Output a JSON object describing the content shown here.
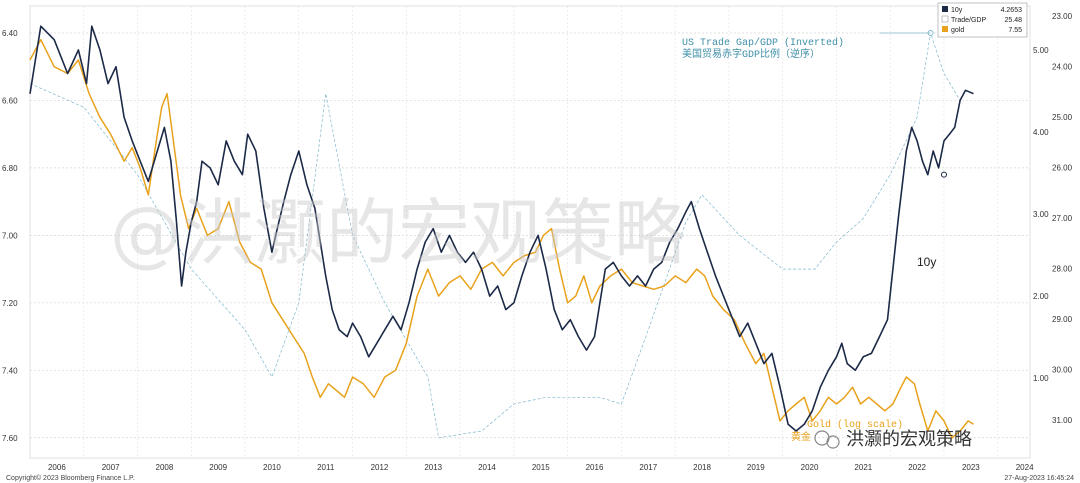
{
  "chart_data": {
    "type": "line",
    "x_ticks": [
      "2006",
      "2007",
      "2008",
      "2009",
      "2010",
      "2011",
      "2012",
      "2013",
      "2014",
      "2015",
      "2016",
      "2017",
      "2018",
      "2019",
      "2020",
      "2021",
      "2022",
      "2023",
      "2024"
    ],
    "left_axis": {
      "ticks": [
        "6.40",
        "6.60",
        "6.80",
        "7.00",
        "7.20",
        "7.40",
        "7.60"
      ],
      "range": [
        6.4,
        7.6
      ],
      "inverted": true
    },
    "right_axis_trade": {
      "ticks": [
        "5.00",
        "4.00",
        "3.00",
        "2.00",
        "1.00"
      ],
      "range": [
        5.0,
        1.0
      ]
    },
    "right_axis_gold": {
      "ticks": [
        "23.00",
        "24.00",
        "25.00",
        "26.00",
        "27.00",
        "28.00",
        "29.00",
        "30.00",
        "31.00"
      ],
      "range": [
        23.0,
        31.0
      ]
    },
    "grid": true,
    "series": [
      {
        "name": "10y",
        "color": "#1c2a48",
        "points": [
          [
            2006.0,
            6.58
          ],
          [
            2006.2,
            6.38
          ],
          [
            2006.45,
            6.42
          ],
          [
            2006.7,
            6.52
          ],
          [
            2006.9,
            6.45
          ],
          [
            2007.05,
            6.55
          ],
          [
            2007.15,
            6.38
          ],
          [
            2007.3,
            6.45
          ],
          [
            2007.45,
            6.55
          ],
          [
            2007.6,
            6.5
          ],
          [
            2007.75,
            6.65
          ],
          [
            2007.9,
            6.72
          ],
          [
            2008.05,
            6.78
          ],
          [
            2008.2,
            6.84
          ],
          [
            2008.35,
            6.76
          ],
          [
            2008.5,
            6.68
          ],
          [
            2008.62,
            6.78
          ],
          [
            2008.72,
            6.95
          ],
          [
            2008.82,
            7.15
          ],
          [
            2008.9,
            7.05
          ],
          [
            2009.0,
            6.96
          ],
          [
            2009.1,
            6.9
          ],
          [
            2009.2,
            6.78
          ],
          [
            2009.35,
            6.8
          ],
          [
            2009.5,
            6.85
          ],
          [
            2009.65,
            6.72
          ],
          [
            2009.8,
            6.78
          ],
          [
            2009.95,
            6.82
          ],
          [
            2010.05,
            6.7
          ],
          [
            2010.2,
            6.75
          ],
          [
            2010.35,
            6.92
          ],
          [
            2010.5,
            7.05
          ],
          [
            2010.6,
            6.98
          ],
          [
            2010.72,
            6.9
          ],
          [
            2010.85,
            6.82
          ],
          [
            2011.0,
            6.75
          ],
          [
            2011.15,
            6.85
          ],
          [
            2011.3,
            6.92
          ],
          [
            2011.4,
            7.02
          ],
          [
            2011.5,
            7.12
          ],
          [
            2011.62,
            7.22
          ],
          [
            2011.75,
            7.28
          ],
          [
            2011.9,
            7.3
          ],
          [
            2012.0,
            7.26
          ],
          [
            2012.15,
            7.3
          ],
          [
            2012.3,
            7.36
          ],
          [
            2012.45,
            7.32
          ],
          [
            2012.6,
            7.28
          ],
          [
            2012.75,
            7.24
          ],
          [
            2012.9,
            7.28
          ],
          [
            2013.05,
            7.2
          ],
          [
            2013.2,
            7.1
          ],
          [
            2013.35,
            7.02
          ],
          [
            2013.5,
            6.98
          ],
          [
            2013.65,
            7.05
          ],
          [
            2013.8,
            7.0
          ],
          [
            2013.95,
            7.05
          ],
          [
            2014.1,
            7.08
          ],
          [
            2014.25,
            7.05
          ],
          [
            2014.4,
            7.1
          ],
          [
            2014.55,
            7.18
          ],
          [
            2014.7,
            7.15
          ],
          [
            2014.85,
            7.22
          ],
          [
            2015.0,
            7.2
          ],
          [
            2015.15,
            7.12
          ],
          [
            2015.3,
            7.05
          ],
          [
            2015.45,
            7.0
          ],
          [
            2015.6,
            7.1
          ],
          [
            2015.75,
            7.22
          ],
          [
            2015.9,
            7.28
          ],
          [
            2016.05,
            7.25
          ],
          [
            2016.2,
            7.3
          ],
          [
            2016.35,
            7.34
          ],
          [
            2016.5,
            7.3
          ],
          [
            2016.6,
            7.2
          ],
          [
            2016.7,
            7.1
          ],
          [
            2016.85,
            7.08
          ],
          [
            2017.0,
            7.12
          ],
          [
            2017.15,
            7.15
          ],
          [
            2017.3,
            7.12
          ],
          [
            2017.45,
            7.15
          ],
          [
            2017.6,
            7.1
          ],
          [
            2017.75,
            7.08
          ],
          [
            2017.9,
            7.02
          ],
          [
            2018.05,
            6.98
          ],
          [
            2018.2,
            6.93
          ],
          [
            2018.3,
            6.9
          ],
          [
            2018.45,
            6.98
          ],
          [
            2018.6,
            7.05
          ],
          [
            2018.75,
            7.12
          ],
          [
            2018.9,
            7.18
          ],
          [
            2019.05,
            7.24
          ],
          [
            2019.2,
            7.3
          ],
          [
            2019.35,
            7.26
          ],
          [
            2019.5,
            7.32
          ],
          [
            2019.65,
            7.38
          ],
          [
            2019.8,
            7.35
          ],
          [
            2019.95,
            7.45
          ],
          [
            2020.1,
            7.56
          ],
          [
            2020.25,
            7.58
          ],
          [
            2020.4,
            7.56
          ],
          [
            2020.55,
            7.52
          ],
          [
            2020.7,
            7.45
          ],
          [
            2020.85,
            7.4
          ],
          [
            2021.0,
            7.36
          ],
          [
            2021.1,
            7.32
          ],
          [
            2021.2,
            7.38
          ],
          [
            2021.35,
            7.4
          ],
          [
            2021.5,
            7.36
          ],
          [
            2021.65,
            7.35
          ],
          [
            2021.8,
            7.3
          ],
          [
            2021.95,
            7.25
          ],
          [
            2022.05,
            7.1
          ],
          [
            2022.15,
            6.95
          ],
          [
            2022.3,
            6.75
          ],
          [
            2022.4,
            6.68
          ],
          [
            2022.5,
            6.72
          ],
          [
            2022.6,
            6.78
          ],
          [
            2022.7,
            6.82
          ],
          [
            2022.8,
            6.75
          ],
          [
            2022.9,
            6.8
          ],
          [
            2023.0,
            6.72
          ],
          [
            2023.1,
            6.7
          ],
          [
            2023.2,
            6.68
          ],
          [
            2023.3,
            6.6
          ],
          [
            2023.4,
            6.57
          ],
          [
            2023.55,
            6.58
          ]
        ]
      },
      {
        "name": "Trade/GDP",
        "color": "#7fb7cd",
        "points": [
          [
            2006.0,
            6.55
          ],
          [
            2007.0,
            6.62
          ],
          [
            2008.0,
            6.82
          ],
          [
            2009.0,
            7.1
          ],
          [
            2010.0,
            7.28
          ],
          [
            2010.5,
            7.42
          ],
          [
            2011.0,
            7.2
          ],
          [
            2011.5,
            6.58
          ],
          [
            2012.0,
            7.0
          ],
          [
            2012.6,
            7.2
          ],
          [
            2013.4,
            7.42
          ],
          [
            2013.6,
            7.6
          ],
          [
            2014.4,
            7.58
          ],
          [
            2015.0,
            7.5
          ],
          [
            2015.6,
            7.48
          ],
          [
            2016.6,
            7.48
          ],
          [
            2017.0,
            7.5
          ],
          [
            2017.5,
            7.28
          ],
          [
            2018.2,
            6.96
          ],
          [
            2018.5,
            6.88
          ],
          [
            2019.2,
            7.0
          ],
          [
            2020.0,
            7.1
          ],
          [
            2020.6,
            7.1
          ],
          [
            2021.0,
            7.02
          ],
          [
            2021.5,
            6.95
          ],
          [
            2022.0,
            6.82
          ],
          [
            2022.5,
            6.65
          ],
          [
            2022.75,
            6.4
          ],
          [
            2023.0,
            6.52
          ],
          [
            2023.3,
            6.6
          ]
        ]
      },
      {
        "name": "gold",
        "color": "#e8a21c",
        "points": [
          [
            2006.0,
            6.48
          ],
          [
            2006.2,
            6.42
          ],
          [
            2006.45,
            6.5
          ],
          [
            2006.7,
            6.52
          ],
          [
            2006.9,
            6.48
          ],
          [
            2007.1,
            6.58
          ],
          [
            2007.3,
            6.65
          ],
          [
            2007.5,
            6.7
          ],
          [
            2007.75,
            6.78
          ],
          [
            2007.9,
            6.74
          ],
          [
            2008.05,
            6.8
          ],
          [
            2008.2,
            6.88
          ],
          [
            2008.35,
            6.72
          ],
          [
            2008.45,
            6.62
          ],
          [
            2008.55,
            6.58
          ],
          [
            2008.65,
            6.7
          ],
          [
            2008.8,
            6.88
          ],
          [
            2008.95,
            6.98
          ],
          [
            2009.1,
            6.92
          ],
          [
            2009.3,
            7.0
          ],
          [
            2009.5,
            6.98
          ],
          [
            2009.7,
            6.9
          ],
          [
            2009.9,
            7.02
          ],
          [
            2010.1,
            7.08
          ],
          [
            2010.3,
            7.1
          ],
          [
            2010.5,
            7.2
          ],
          [
            2010.7,
            7.25
          ],
          [
            2010.9,
            7.3
          ],
          [
            2011.1,
            7.35
          ],
          [
            2011.25,
            7.42
          ],
          [
            2011.4,
            7.48
          ],
          [
            2011.55,
            7.44
          ],
          [
            2011.7,
            7.46
          ],
          [
            2011.85,
            7.48
          ],
          [
            2012.0,
            7.42
          ],
          [
            2012.2,
            7.44
          ],
          [
            2012.4,
            7.48
          ],
          [
            2012.6,
            7.42
          ],
          [
            2012.8,
            7.4
          ],
          [
            2013.0,
            7.32
          ],
          [
            2013.2,
            7.18
          ],
          [
            2013.4,
            7.1
          ],
          [
            2013.6,
            7.18
          ],
          [
            2013.8,
            7.14
          ],
          [
            2014.0,
            7.12
          ],
          [
            2014.2,
            7.16
          ],
          [
            2014.4,
            7.1
          ],
          [
            2014.6,
            7.08
          ],
          [
            2014.8,
            7.12
          ],
          [
            2015.0,
            7.08
          ],
          [
            2015.2,
            7.06
          ],
          [
            2015.4,
            7.05
          ],
          [
            2015.55,
            7.0
          ],
          [
            2015.7,
            6.98
          ],
          [
            2015.85,
            7.1
          ],
          [
            2016.0,
            7.2
          ],
          [
            2016.15,
            7.18
          ],
          [
            2016.3,
            7.12
          ],
          [
            2016.45,
            7.2
          ],
          [
            2016.6,
            7.15
          ],
          [
            2016.8,
            7.12
          ],
          [
            2017.0,
            7.1
          ],
          [
            2017.2,
            7.14
          ],
          [
            2017.4,
            7.15
          ],
          [
            2017.6,
            7.16
          ],
          [
            2017.8,
            7.15
          ],
          [
            2018.0,
            7.12
          ],
          [
            2018.2,
            7.14
          ],
          [
            2018.4,
            7.1
          ],
          [
            2018.55,
            7.12
          ],
          [
            2018.7,
            7.18
          ],
          [
            2018.9,
            7.22
          ],
          [
            2019.1,
            7.25
          ],
          [
            2019.3,
            7.32
          ],
          [
            2019.5,
            7.38
          ],
          [
            2019.65,
            7.35
          ],
          [
            2019.8,
            7.45
          ],
          [
            2019.95,
            7.55
          ],
          [
            2020.1,
            7.52
          ],
          [
            2020.25,
            7.5
          ],
          [
            2020.4,
            7.48
          ],
          [
            2020.55,
            7.55
          ],
          [
            2020.7,
            7.52
          ],
          [
            2020.85,
            7.48
          ],
          [
            2021.0,
            7.5
          ],
          [
            2021.15,
            7.48
          ],
          [
            2021.3,
            7.45
          ],
          [
            2021.45,
            7.5
          ],
          [
            2021.6,
            7.48
          ],
          [
            2021.75,
            7.5
          ],
          [
            2021.9,
            7.52
          ],
          [
            2022.05,
            7.5
          ],
          [
            2022.2,
            7.45
          ],
          [
            2022.3,
            7.42
          ],
          [
            2022.45,
            7.44
          ],
          [
            2022.55,
            7.5
          ],
          [
            2022.7,
            7.58
          ],
          [
            2022.85,
            7.52
          ],
          [
            2023.0,
            7.55
          ],
          [
            2023.15,
            7.6
          ],
          [
            2023.3,
            7.58
          ],
          [
            2023.45,
            7.55
          ],
          [
            2023.55,
            7.56
          ]
        ]
      }
    ],
    "legend": [
      {
        "name": "10y",
        "value": "4.2653",
        "color": "#1c2a48"
      },
      {
        "name": "Trade/GDP",
        "value": "25.48",
        "color": "#ffffff"
      },
      {
        "name": "gold",
        "value": "7.55",
        "color": "#e8a21c"
      }
    ],
    "annotations": {
      "trade_en": "US Trade Gap/GDP (Inverted)",
      "trade_cn": "美国贸易赤字GDP比例（逆序）",
      "label_10y": "10y",
      "gold_text": "Gold (log scale)",
      "gold_cn": "黄金"
    }
  },
  "watermark": "@洪灏的宏观策略",
  "wechat_mark": "洪灏的宏观策略",
  "footer_left": "Copyright© 2023 Bloomberg Finance L.P.",
  "footer_right": "27-Aug-2023 16:45:24"
}
